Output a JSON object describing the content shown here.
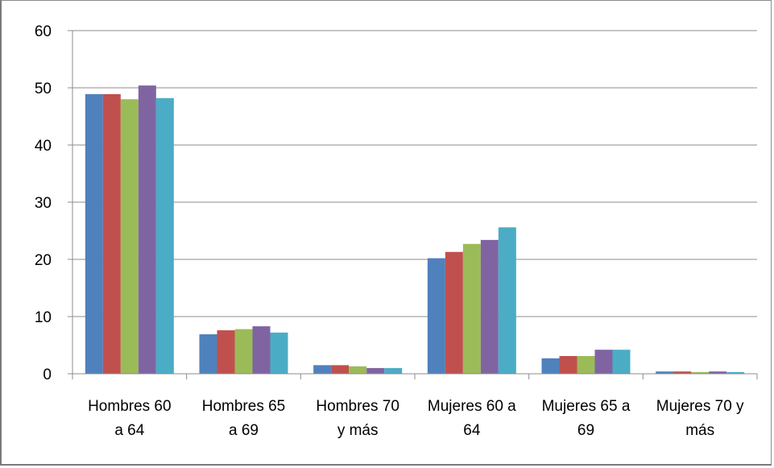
{
  "chart_data": {
    "type": "bar",
    "categories": [
      [
        "Hombres 60",
        "a 64"
      ],
      [
        "Hombres 65",
        "a 69"
      ],
      [
        "Hombres 70",
        "y más"
      ],
      [
        "Mujeres 60 a",
        "64"
      ],
      [
        "Mujeres 65 a",
        "69"
      ],
      [
        "Mujeres 70 y",
        "más"
      ]
    ],
    "series": [
      {
        "color": "#4f81bd",
        "values": [
          48.9,
          6.9,
          1.5,
          20.2,
          2.7,
          0.4
        ]
      },
      {
        "color": "#c0504d",
        "values": [
          48.9,
          7.6,
          1.5,
          21.3,
          3.1,
          0.4
        ]
      },
      {
        "color": "#9bbb59",
        "values": [
          48.0,
          7.8,
          1.3,
          22.7,
          3.1,
          0.3
        ]
      },
      {
        "color": "#8064a2",
        "values": [
          50.4,
          8.3,
          1.0,
          23.4,
          4.2,
          0.4
        ]
      },
      {
        "color": "#4bacc6",
        "values": [
          48.2,
          7.2,
          1.0,
          25.6,
          4.2,
          0.3
        ]
      }
    ],
    "ylim": [
      0,
      60
    ],
    "yticks": [
      0,
      10,
      20,
      30,
      40,
      50,
      60
    ],
    "grid": true,
    "legend": "none",
    "title": "",
    "xlabel": "",
    "ylabel": ""
  }
}
